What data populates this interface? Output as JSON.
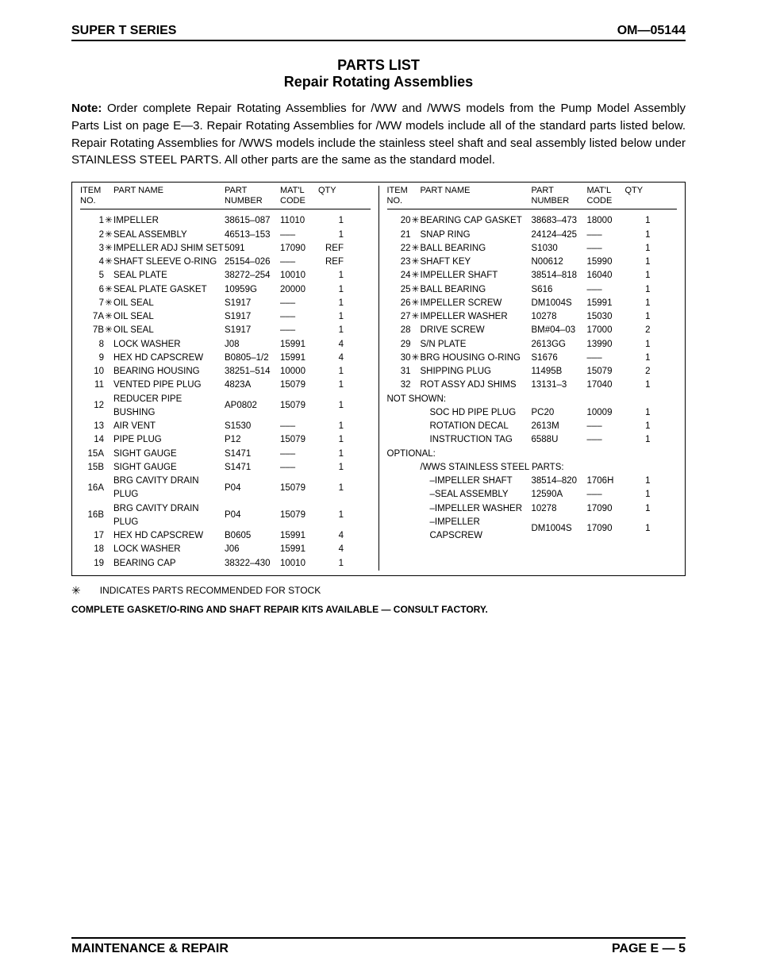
{
  "header": {
    "left": "SUPER T SERIES",
    "right": "OM—05144"
  },
  "titles": {
    "line1": "PARTS LIST",
    "line2": "Repair Rotating Assemblies"
  },
  "note": {
    "label": "Note:",
    "text": "Order complete Repair Rotating Assemblies for /WW and /WWS models from the Pump Model Assembly Parts List on page E—3. Repair Rotating Assemblies for /WW models include all of the standard parts listed below. Repair Rotating Assemblies for /WWS models include the stainless steel shaft and seal assembly listed below under STAINLESS STEEL PARTS. All other parts are the same as the standard model."
  },
  "columns": {
    "h_item": "ITEM\nNO.",
    "h_name": "PART NAME",
    "h_partnum": "PART\nNUMBER",
    "h_matl": "MAT'L\nCODE",
    "h_qty": "QTY"
  },
  "star": "✳",
  "dash": "–––",
  "left_rows": [
    {
      "no": "1",
      "s": true,
      "name": "IMPELLER",
      "pn": "38615–087",
      "mc": "11010",
      "q": "1"
    },
    {
      "no": "2",
      "s": true,
      "name": "SEAL ASSEMBLY",
      "pn": "46513–153",
      "mc": "DASH",
      "q": "1"
    },
    {
      "no": "3",
      "s": true,
      "name": "IMPELLER ADJ SHIM SET",
      "pn": "5091",
      "mc": "17090",
      "q": "REF"
    },
    {
      "no": "4",
      "s": true,
      "name": "SHAFT SLEEVE O-RING",
      "pn": "25154–026",
      "mc": "DASH",
      "q": "REF"
    },
    {
      "no": "5",
      "s": false,
      "name": "SEAL PLATE",
      "pn": "38272–254",
      "mc": "10010",
      "q": "1"
    },
    {
      "no": "6",
      "s": true,
      "name": "SEAL PLATE GASKET",
      "pn": "10959G",
      "mc": "20000",
      "q": "1"
    },
    {
      "no": "7",
      "s": true,
      "name": "OIL SEAL",
      "pn": "S1917",
      "mc": "DASH",
      "q": "1"
    },
    {
      "no": "7A",
      "s": true,
      "name": "OIL SEAL",
      "pn": "S1917",
      "mc": "DASH",
      "q": "1"
    },
    {
      "no": "7B",
      "s": true,
      "name": "OIL SEAL",
      "pn": "S1917",
      "mc": "DASH",
      "q": "1"
    },
    {
      "no": "8",
      "s": false,
      "name": "LOCK WASHER",
      "pn": "J08",
      "mc": "15991",
      "q": "4"
    },
    {
      "no": "9",
      "s": false,
      "name": "HEX HD CAPSCREW",
      "pn": "B0805–1/2",
      "mc": "15991",
      "q": "4"
    },
    {
      "no": "10",
      "s": false,
      "name": "BEARING HOUSING",
      "pn": "38251–514",
      "mc": "10000",
      "q": "1"
    },
    {
      "no": "11",
      "s": false,
      "name": "VENTED PIPE PLUG",
      "pn": "4823A",
      "mc": "15079",
      "q": "1"
    },
    {
      "no": "12",
      "s": false,
      "name": "REDUCER PIPE BUSHING",
      "pn": "AP0802",
      "mc": "15079",
      "q": "1"
    },
    {
      "no": "13",
      "s": false,
      "name": "AIR VENT",
      "pn": "S1530",
      "mc": "DASH",
      "q": "1"
    },
    {
      "no": "14",
      "s": false,
      "name": "PIPE PLUG",
      "pn": "P12",
      "mc": "15079",
      "q": "1"
    },
    {
      "no": "15A",
      "s": false,
      "name": "SIGHT GAUGE",
      "pn": "S1471",
      "mc": "DASH",
      "q": "1"
    },
    {
      "no": "15B",
      "s": false,
      "name": "SIGHT GAUGE",
      "pn": "S1471",
      "mc": "DASH",
      "q": "1"
    },
    {
      "no": "16A",
      "s": false,
      "name": "BRG CAVITY DRAIN PLUG",
      "pn": "P04",
      "mc": "15079",
      "q": "1"
    },
    {
      "no": "16B",
      "s": false,
      "name": "BRG CAVITY DRAIN PLUG",
      "pn": "P04",
      "mc": "15079",
      "q": "1"
    },
    {
      "no": "17",
      "s": false,
      "name": "HEX HD CAPSCREW",
      "pn": "B0605",
      "mc": "15991",
      "q": "4"
    },
    {
      "no": "18",
      "s": false,
      "name": "LOCK WASHER",
      "pn": "J06",
      "mc": "15991",
      "q": "4"
    },
    {
      "no": "19",
      "s": false,
      "name": "BEARING CAP",
      "pn": "38322–430",
      "mc": "10010",
      "q": "1"
    }
  ],
  "right_rows": [
    {
      "no": "20",
      "s": true,
      "name": "BEARING CAP GASKET",
      "pn": "38683–473",
      "mc": "18000",
      "q": "1"
    },
    {
      "no": "21",
      "s": false,
      "name": "SNAP RING",
      "pn": "24124–425",
      "mc": "DASH",
      "q": "1"
    },
    {
      "no": "22",
      "s": true,
      "name": "BALL BEARING",
      "pn": "S1030",
      "mc": "DASH",
      "q": "1"
    },
    {
      "no": "23",
      "s": true,
      "name": "SHAFT KEY",
      "pn": "N00612",
      "mc": "15990",
      "q": "1"
    },
    {
      "no": "24",
      "s": true,
      "name": "IMPELLER SHAFT",
      "pn": "38514–818",
      "mc": "16040",
      "q": "1"
    },
    {
      "no": "25",
      "s": true,
      "name": "BALL BEARING",
      "pn": "S616",
      "mc": "DASH",
      "q": "1"
    },
    {
      "no": "26",
      "s": true,
      "name": "IMPELLER SCREW",
      "pn": "DM1004S",
      "mc": "15991",
      "q": "1"
    },
    {
      "no": "27",
      "s": true,
      "name": "IMPELLER WASHER",
      "pn": "10278",
      "mc": "15030",
      "q": "1"
    },
    {
      "no": "28",
      "s": false,
      "name": "DRIVE SCREW",
      "pn": "BM#04–03",
      "mc": "17000",
      "q": "2"
    },
    {
      "no": "29",
      "s": false,
      "name": "S/N PLATE",
      "pn": "2613GG",
      "mc": "13990",
      "q": "1"
    },
    {
      "no": "30",
      "s": true,
      "name": "BRG HOUSING O-RING",
      "pn": "S1676",
      "mc": "DASH",
      "q": "1"
    },
    {
      "no": "31",
      "s": false,
      "name": "SHIPPING PLUG",
      "pn": "11495B",
      "mc": "15079",
      "q": "2"
    },
    {
      "no": "32",
      "s": false,
      "name": "ROT ASSY ADJ SHIMS",
      "pn": "13131–3",
      "mc": "17040",
      "q": "1"
    }
  ],
  "not_shown_label": "NOT SHOWN:",
  "not_shown": [
    {
      "name": "SOC HD PIPE PLUG",
      "pn": "PC20",
      "mc": "10009",
      "q": "1"
    },
    {
      "name": "ROTATION DECAL",
      "pn": "2613M",
      "mc": "DASH",
      "q": "1"
    },
    {
      "name": "INSTRUCTION TAG",
      "pn": "6588U",
      "mc": "DASH",
      "q": "1"
    }
  ],
  "optional_label": "OPTIONAL:",
  "ss_label": "/WWS STAINLESS STEEL PARTS:",
  "optional": [
    {
      "name": "–IMPELLER SHAFT",
      "pn": "38514–820",
      "mc": "1706H",
      "q": "1"
    },
    {
      "name": "–SEAL ASSEMBLY",
      "pn": "12590A",
      "mc": "DASH",
      "q": "1"
    },
    {
      "name": "–IMPELLER WASHER",
      "pn": "10278",
      "mc": "17090",
      "q": "1"
    },
    {
      "name": "–IMPELLER CAPSCREW",
      "pn": "DM1004S",
      "mc": "17090",
      "q": "1"
    }
  ],
  "footnote": "INDICATES PARTS RECOMMENDED FOR STOCK",
  "kit_note": "COMPLETE GASKET/O-RING AND SHAFT REPAIR KITS AVAILABLE — CONSULT FACTORY.",
  "footer": {
    "left": "MAINTENANCE & REPAIR",
    "right": "PAGE E — 5"
  }
}
